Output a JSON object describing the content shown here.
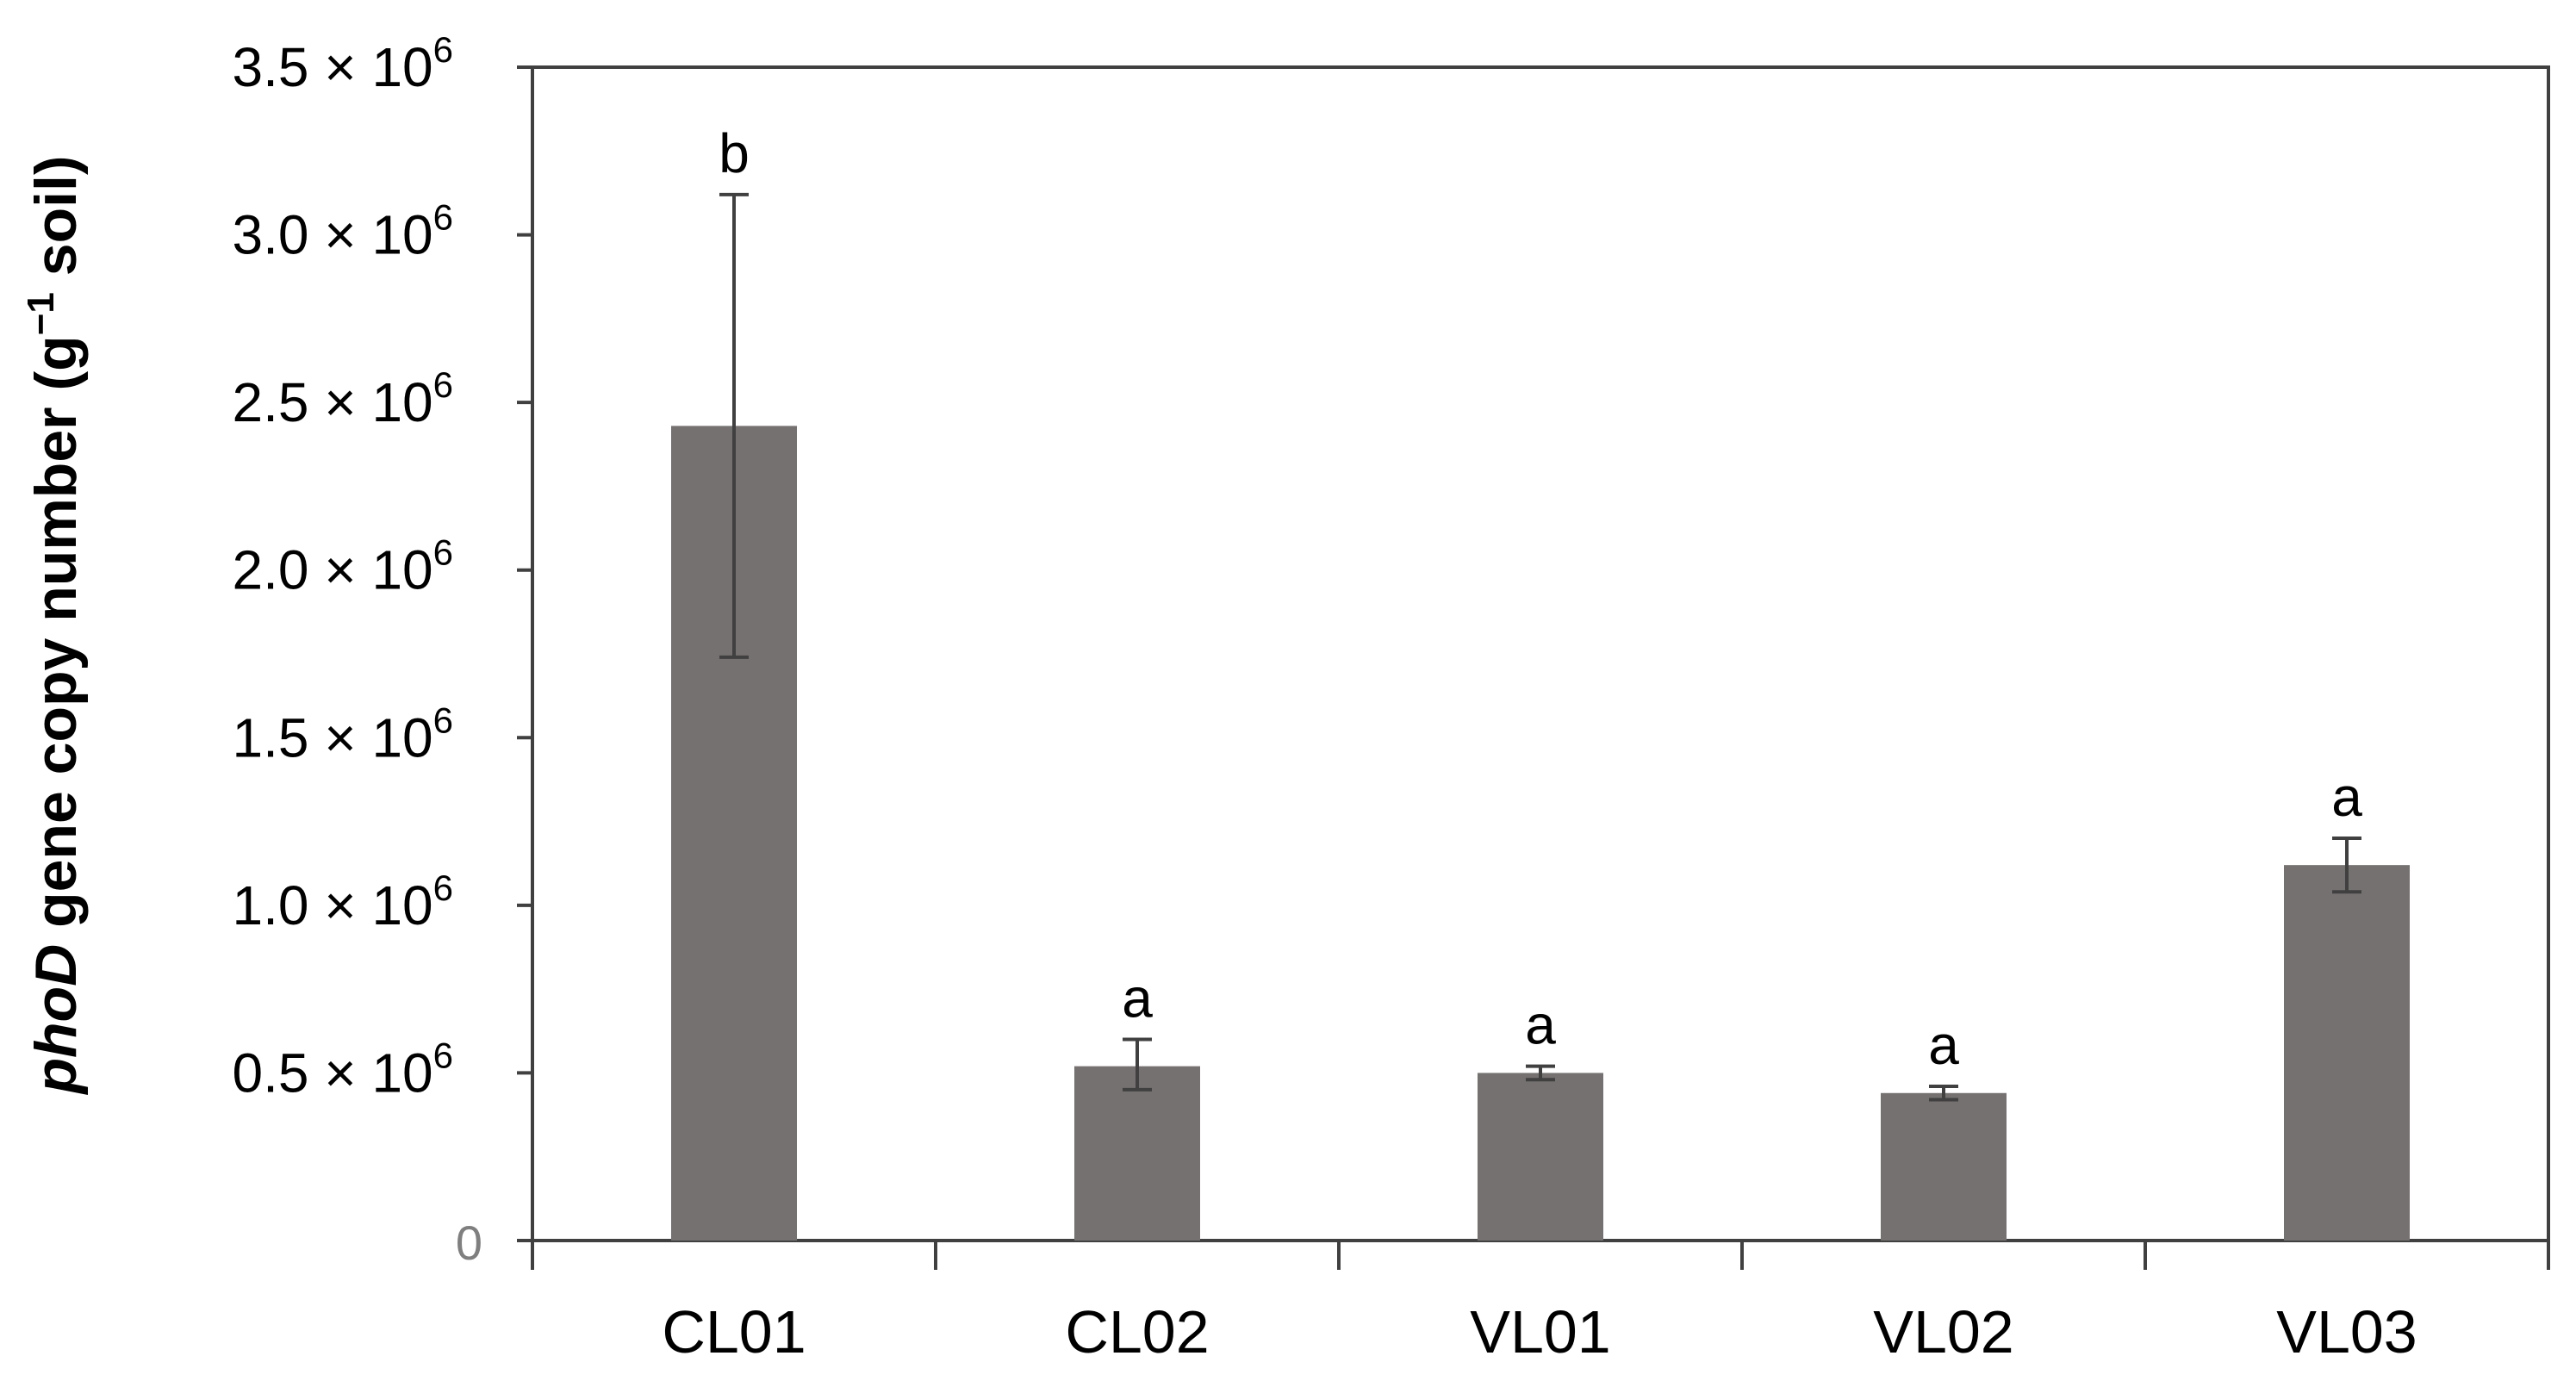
{
  "chart_data": {
    "type": "bar",
    "title": "",
    "xlabel": "",
    "ylabel": {
      "italic_part": "phoD",
      "main_part": " gene copy number (g",
      "superscript": "−1",
      "end_part": " soil)"
    },
    "categories": [
      "CL01",
      "CL02",
      "VL01",
      "VL02",
      "VL03"
    ],
    "series": [
      {
        "name": "phoD",
        "values": [
          2430000,
          520000,
          500000,
          440000,
          1120000
        ],
        "error_low": [
          1740000,
          450000,
          480000,
          420000,
          1040000
        ],
        "error_high": [
          3120000,
          600000,
          520000,
          460000,
          1200000
        ],
        "significance": [
          "b",
          "a",
          "a",
          "a",
          "a"
        ]
      }
    ],
    "ylim": [
      0,
      3500000
    ],
    "y_ticks": [
      {
        "value": 0,
        "mantissa": "0",
        "times": "",
        "base": "",
        "exponent": ""
      },
      {
        "value": 500000,
        "mantissa": "0.5",
        "times": "×",
        "base": "10",
        "exponent": "6"
      },
      {
        "value": 1000000,
        "mantissa": "1.0",
        "times": "×",
        "base": "10",
        "exponent": "6"
      },
      {
        "value": 1500000,
        "mantissa": "1.5",
        "times": "×",
        "base": "10",
        "exponent": "6"
      },
      {
        "value": 2000000,
        "mantissa": "2.0",
        "times": "×",
        "base": "10",
        "exponent": "6"
      },
      {
        "value": 2500000,
        "mantissa": "2.5",
        "times": "×",
        "base": "10",
        "exponent": "6"
      },
      {
        "value": 3000000,
        "mantissa": "3.0",
        "times": "×",
        "base": "10",
        "exponent": "6"
      },
      {
        "value": 3500000,
        "mantissa": "3.5",
        "times": "×",
        "base": "10",
        "exponent": "6"
      }
    ],
    "grid": false,
    "legend": "none",
    "colors": {
      "bar": "#767171",
      "error_bar": "#404040",
      "axis": "#404040",
      "zero_label": "#7f7f7f"
    }
  }
}
